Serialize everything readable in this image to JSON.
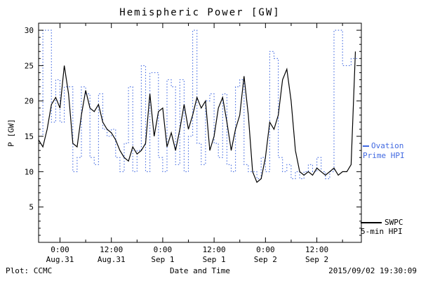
{
  "title": "Hemispheric Power [GW]",
  "axes": {
    "ylabel": "P [GW]",
    "xlabel": "Date and Time"
  },
  "footer": {
    "plot_credit": "Plot: CCMC",
    "timestamp": "2015/09/02 19:30:09"
  },
  "legend": {
    "ovation": {
      "line1": "Ovation",
      "line2": "Prime HPI",
      "color": "#4169E1"
    },
    "swpc": {
      "line1": "SWPC",
      "line2": "5-min HPI",
      "color": "#000000"
    }
  },
  "chart_data": {
    "type": "line",
    "title": "Hemispheric Power [GW]",
    "xlabel": "Date and Time",
    "ylabel": "P [GW]",
    "ylim": [
      0,
      31
    ],
    "y_ticks": [
      5,
      10,
      15,
      20,
      25,
      30
    ],
    "y_minor_step": 1,
    "xlim": [
      -5,
      70.4
    ],
    "x_unit": "hours relative to Aug 31 0:00",
    "x_start": -5,
    "x_step": 1,
    "x_minor_step": 6,
    "x_ticks": [
      {
        "hour": 0,
        "time": "0:00",
        "date": "Aug.31"
      },
      {
        "hour": 12,
        "time": "12:00",
        "date": "Aug.31"
      },
      {
        "hour": 24,
        "time": "0:00",
        "date": "Sep 1"
      },
      {
        "hour": 36,
        "time": "12:00",
        "date": "Sep 1"
      },
      {
        "hour": 48,
        "time": "0:00",
        "date": "Sep 2"
      },
      {
        "hour": 60,
        "time": "12:00",
        "date": "Sep 2"
      }
    ],
    "grid": false,
    "legend_position": "right-outside",
    "series": [
      {
        "name": "SWPC 5-min HPI",
        "color": "#000000",
        "style": "solid",
        "values": [
          14.5,
          13.5,
          16,
          19.5,
          20.5,
          19,
          25,
          21,
          14,
          13.5,
          18,
          21.5,
          19,
          18.5,
          19.5,
          17,
          16,
          15.5,
          14.5,
          13,
          12,
          11.5,
          13.5,
          12.5,
          13,
          14,
          21,
          15,
          18.5,
          19,
          13.5,
          15.5,
          13,
          16,
          19.5,
          16,
          18,
          20.5,
          19,
          20,
          13,
          15,
          19,
          20.5,
          17,
          13,
          16,
          18,
          23.5,
          18,
          10,
          8.5,
          9,
          12,
          17,
          16,
          18,
          23,
          24.5,
          20,
          13,
          10,
          9.5,
          10,
          9.5,
          10.5,
          10,
          9.5,
          10,
          10.5,
          9.5,
          10,
          10,
          11,
          27
        ]
      },
      {
        "name": "Ovation Prime HPI",
        "color": "#4169E1",
        "style": "dotted-step",
        "values": [
          15,
          30,
          30,
          17,
          23,
          17,
          22,
          22,
          10,
          12,
          22,
          21,
          12,
          11,
          21,
          16,
          15,
          16,
          12,
          10,
          14,
          22,
          10,
          13,
          25,
          10,
          24,
          24,
          12,
          10,
          23,
          22,
          11,
          23,
          10,
          15,
          30,
          14,
          11,
          20,
          21,
          14,
          12,
          21,
          11,
          10,
          22,
          23,
          11,
          10,
          10,
          9,
          12,
          10,
          27,
          26,
          12,
          10,
          11,
          9,
          10,
          9,
          10,
          11,
          10,
          12,
          10,
          9,
          10,
          30,
          30,
          25,
          25,
          26,
          26
        ]
      }
    ]
  }
}
